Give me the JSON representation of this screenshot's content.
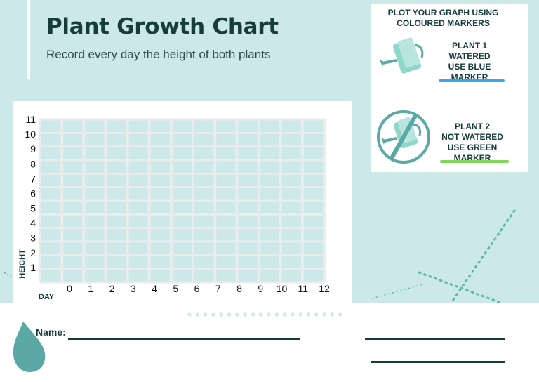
{
  "header": {
    "title": "Plant Growth Chart",
    "subtitle": "Record every day the height of both plants"
  },
  "legend": {
    "heading_line1": "PLOT YOUR GRAPH USING",
    "heading_line2": "COLOURED MARKERS",
    "plant1": {
      "line1": "PLANT 1",
      "line2": "WATERED",
      "line3": "USE BLUE MARKER",
      "marker_color": "#36a9e6",
      "icon": "watering-can-icon"
    },
    "plant2": {
      "line1": "PLANT 2",
      "line2": "NOT WATERED",
      "line3": "USE GREEN MARKER",
      "marker_color": "#7ed957",
      "icon": "no-watering-can-icon"
    }
  },
  "footer": {
    "name_label": "Name:",
    "icon": "water-drop-icon"
  },
  "colors": {
    "background": "#cde8e8",
    "grid_fill": "#cde8e8",
    "grid_lines": "#e9ecec",
    "text_dark": "#173c3c",
    "accent_teal": "#5aa9a6"
  },
  "chart_data": {
    "type": "line",
    "title": "",
    "xlabel": "DAY",
    "ylabel": "HEIGHT",
    "xlim": [
      0,
      12
    ],
    "ylim": [
      0,
      11
    ],
    "x_ticks": [
      "0",
      "1",
      "2",
      "3",
      "4",
      "5",
      "6",
      "7",
      "8",
      "9",
      "10",
      "11",
      "12"
    ],
    "y_ticks": [
      "1",
      "2",
      "3",
      "4",
      "5",
      "6",
      "7",
      "8",
      "9",
      "10",
      "11"
    ],
    "grid": true,
    "series": []
  }
}
